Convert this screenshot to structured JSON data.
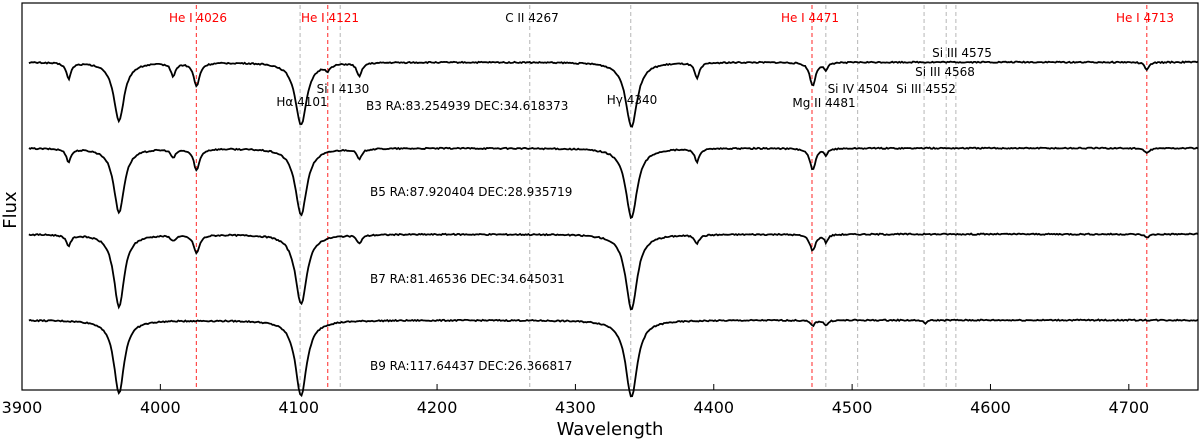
{
  "chart_data": {
    "type": "line",
    "xlabel": "Wavelength",
    "ylabel": "Flux",
    "xlim": [
      3900,
      4750
    ],
    "xticks": [
      3900,
      4000,
      4100,
      4200,
      4300,
      4400,
      4500,
      4600,
      4700
    ],
    "grid": false,
    "series": [
      {
        "name": "B3 RA:83.254939 DEC:34.618373",
        "offset": 3.05,
        "lines": [
          {
            "w": 3933.7,
            "d": 0.15,
            "s": 2
          },
          {
            "w": 3970.1,
            "d": 0.55,
            "s": 4.5
          },
          {
            "w": 4009.3,
            "d": 0.12,
            "s": 2
          },
          {
            "w": 4026.2,
            "d": 0.22,
            "s": 2.5
          },
          {
            "w": 4101.7,
            "d": 0.58,
            "s": 5
          },
          {
            "w": 4121.0,
            "d": 0.05,
            "s": 2
          },
          {
            "w": 4143.8,
            "d": 0.13,
            "s": 2
          },
          {
            "w": 4340.5,
            "d": 0.6,
            "s": 5
          },
          {
            "w": 4387.9,
            "d": 0.15,
            "s": 2
          },
          {
            "w": 4471.5,
            "d": 0.22,
            "s": 2.5
          },
          {
            "w": 4481.2,
            "d": 0.07,
            "s": 1.5
          },
          {
            "w": 4713.1,
            "d": 0.07,
            "s": 2
          }
        ]
      },
      {
        "name": "B5 RA:87.920404 DEC:28.935719",
        "offset": 2.25,
        "lines": [
          {
            "w": 3933.7,
            "d": 0.12,
            "s": 2
          },
          {
            "w": 3970.1,
            "d": 0.6,
            "s": 4.5
          },
          {
            "w": 4009.3,
            "d": 0.08,
            "s": 2
          },
          {
            "w": 4026.2,
            "d": 0.2,
            "s": 2.5
          },
          {
            "w": 4101.7,
            "d": 0.62,
            "s": 5
          },
          {
            "w": 4143.8,
            "d": 0.1,
            "s": 2
          },
          {
            "w": 4340.5,
            "d": 0.65,
            "s": 5
          },
          {
            "w": 4387.9,
            "d": 0.12,
            "s": 2
          },
          {
            "w": 4471.5,
            "d": 0.2,
            "s": 2.5
          },
          {
            "w": 4481.2,
            "d": 0.06,
            "s": 1.5
          },
          {
            "w": 4713.1,
            "d": 0.05,
            "s": 2
          }
        ]
      },
      {
        "name": "B7 RA:81.46536 DEC:34.645031",
        "offset": 1.45,
        "lines": [
          {
            "w": 3933.7,
            "d": 0.1,
            "s": 2
          },
          {
            "w": 3970.1,
            "d": 0.68,
            "s": 4.5
          },
          {
            "w": 4009.3,
            "d": 0.05,
            "s": 2
          },
          {
            "w": 4026.2,
            "d": 0.17,
            "s": 2.5
          },
          {
            "w": 4101.7,
            "d": 0.65,
            "s": 5
          },
          {
            "w": 4143.8,
            "d": 0.08,
            "s": 2
          },
          {
            "w": 4340.5,
            "d": 0.7,
            "s": 5
          },
          {
            "w": 4387.9,
            "d": 0.08,
            "s": 2
          },
          {
            "w": 4471.5,
            "d": 0.15,
            "s": 2.5
          },
          {
            "w": 4481.2,
            "d": 0.07,
            "s": 1.5
          },
          {
            "w": 4713.1,
            "d": 0.03,
            "s": 2
          }
        ]
      },
      {
        "name": "B9 RA:117.64437 DEC:26.366817",
        "offset": 0.65,
        "lines": [
          {
            "w": 3970.1,
            "d": 0.68,
            "s": 4.5
          },
          {
            "w": 4101.7,
            "d": 0.7,
            "s": 5
          },
          {
            "w": 4340.5,
            "d": 0.72,
            "s": 5
          },
          {
            "w": 4471.5,
            "d": 0.05,
            "s": 2
          },
          {
            "w": 4481.2,
            "d": 0.05,
            "s": 1.5
          },
          {
            "w": 4552.6,
            "d": 0.03,
            "s": 1.5
          }
        ]
      }
    ],
    "reference_lines": [
      {
        "label": "He I 4026",
        "w": 4026,
        "color": "#ff0000",
        "style": "dashed"
      },
      {
        "label": "He I 4121",
        "w": 4121,
        "color": "#ff0000",
        "style": "dashed"
      },
      {
        "label": "He I 4471",
        "w": 4471,
        "color": "#ff0000",
        "style": "dashed"
      },
      {
        "label": "He I 4713",
        "w": 4713,
        "color": "#ff0000",
        "style": "dashed"
      },
      {
        "label": "Hα 4101",
        "w": 4101,
        "color": "#aaaaaa",
        "style": "dashed"
      },
      {
        "label": "Si I 4130",
        "w": 4130,
        "color": "#aaaaaa",
        "style": "dashed"
      },
      {
        "label": "C II 4267",
        "w": 4267,
        "color": "#aaaaaa",
        "style": "dashed"
      },
      {
        "label": "Hγ 4340",
        "w": 4340,
        "color": "#aaaaaa",
        "style": "dashed"
      },
      {
        "label": "Mg II 4481",
        "w": 4481,
        "color": "#aaaaaa",
        "style": "dashed"
      },
      {
        "label": "Si IV 4504",
        "w": 4504,
        "color": "#aaaaaa",
        "style": "dashed"
      },
      {
        "label": "Si III 4552",
        "w": 4552,
        "color": "#aaaaaa",
        "style": "dashed"
      },
      {
        "label": "Si III 4568",
        "w": 4568,
        "color": "#aaaaaa",
        "style": "dashed"
      },
      {
        "label": "Si III 4575",
        "w": 4575,
        "color": "#aaaaaa",
        "style": "dashed"
      }
    ],
    "colors": {
      "spectrum": "#000000",
      "helium": "#ff0000",
      "other": "#000000",
      "guide": "#aaaaaa"
    }
  }
}
